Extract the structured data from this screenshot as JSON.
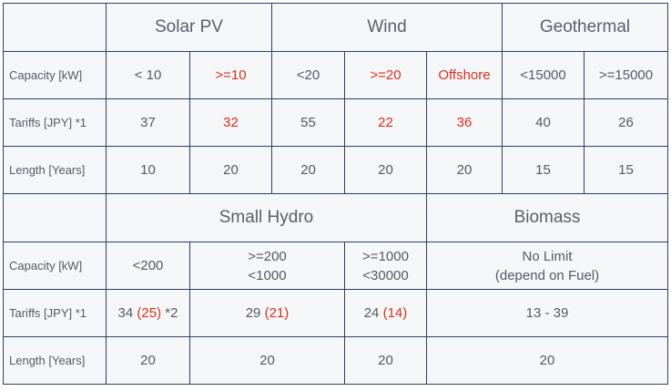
{
  "colors": {
    "accent_red": "#d6301f",
    "border": "#2f3f63",
    "cell_bg": "#f5f6f8",
    "text": "#555a63"
  },
  "row_labels": {
    "capacity": "Capacity [kW]",
    "tariffs": "Tariffs [JPY] *1",
    "length": "Length [Years]"
  },
  "top": {
    "headers": {
      "solar": "Solar PV",
      "wind": "Wind",
      "geothermal": "Geothermal"
    },
    "capacity": [
      "< 10",
      ">=10",
      "<20",
      ">=20",
      "Offshore",
      "<15000",
      ">=15000"
    ],
    "tariffs": [
      "37",
      "32",
      "55",
      "22",
      "36",
      "40",
      "26"
    ],
    "length": [
      "10",
      "20",
      "20",
      "20",
      "20",
      "15",
      "15"
    ]
  },
  "bottom": {
    "headers": {
      "hydro": "Small Hydro",
      "biomass": "Biomass"
    },
    "capacity": {
      "c1": "<200",
      "c2_line1": ">=200",
      "c2_line2": "<1000",
      "c3_line1": ">=1000",
      "c3_line2": "<30000",
      "c4_line1": "No Limit",
      "c4_line2": "(depend on Fuel)"
    },
    "tariffs": {
      "c1_main": "34",
      "c1_red": "(25)",
      "c1_note": "*2",
      "c2_main": "29",
      "c2_red": "(21)",
      "c3_main": "24",
      "c3_red": "(14)",
      "c4": "13 - 39"
    },
    "length": [
      "20",
      "20",
      "20",
      "20"
    ]
  }
}
